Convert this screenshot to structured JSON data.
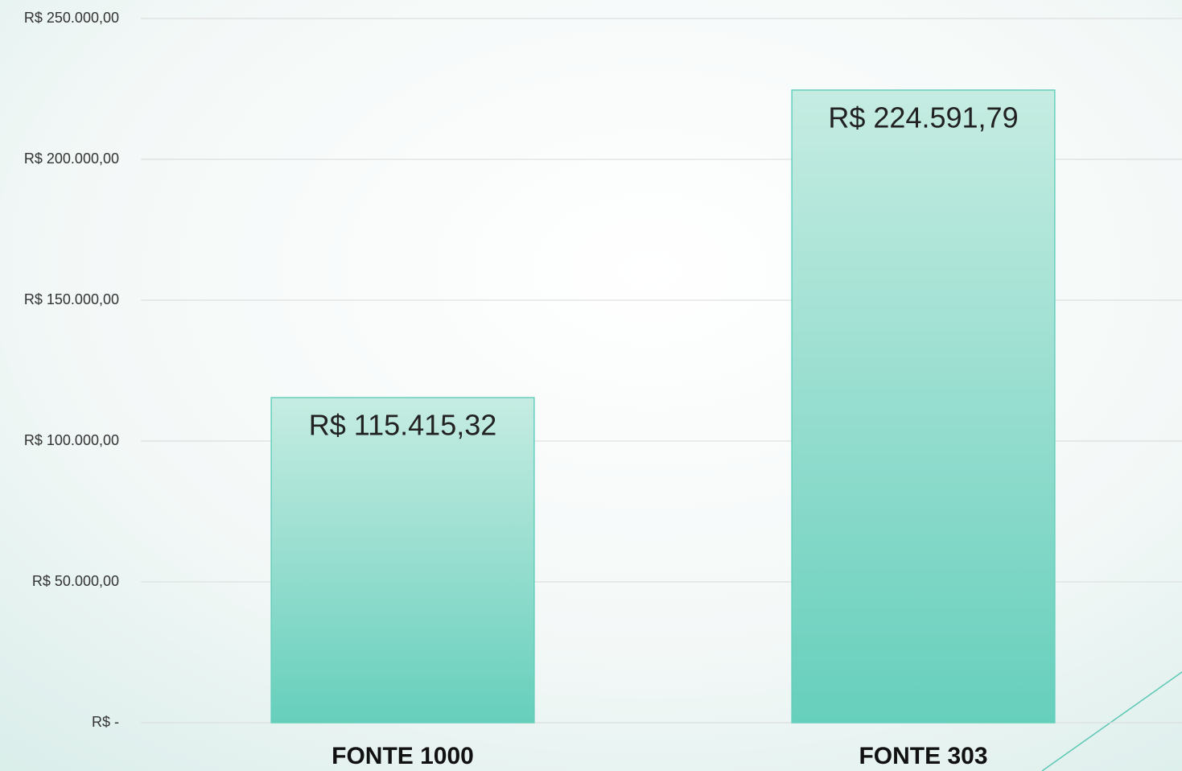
{
  "chart_data": {
    "type": "bar",
    "categories": [
      "FONTE 1000",
      "FONTE 303"
    ],
    "values": [
      115415.32,
      224591.79
    ],
    "value_labels": [
      "R$ 115.415,32",
      "R$ 224.591,79"
    ],
    "color": "#66cfbc",
    "ylim": [
      0,
      250000
    ],
    "yticks": [
      {
        "value": 0,
        "label": "R$ -"
      },
      {
        "value": 50000,
        "label": "R$ 50.000,00"
      },
      {
        "value": 100000,
        "label": "R$ 100.000,00"
      },
      {
        "value": 150000,
        "label": "R$ 150.000,00"
      },
      {
        "value": 200000,
        "label": "R$ 200.000,00"
      },
      {
        "value": 250000,
        "label": "R$ 250.000,00"
      }
    ],
    "grid": true
  }
}
